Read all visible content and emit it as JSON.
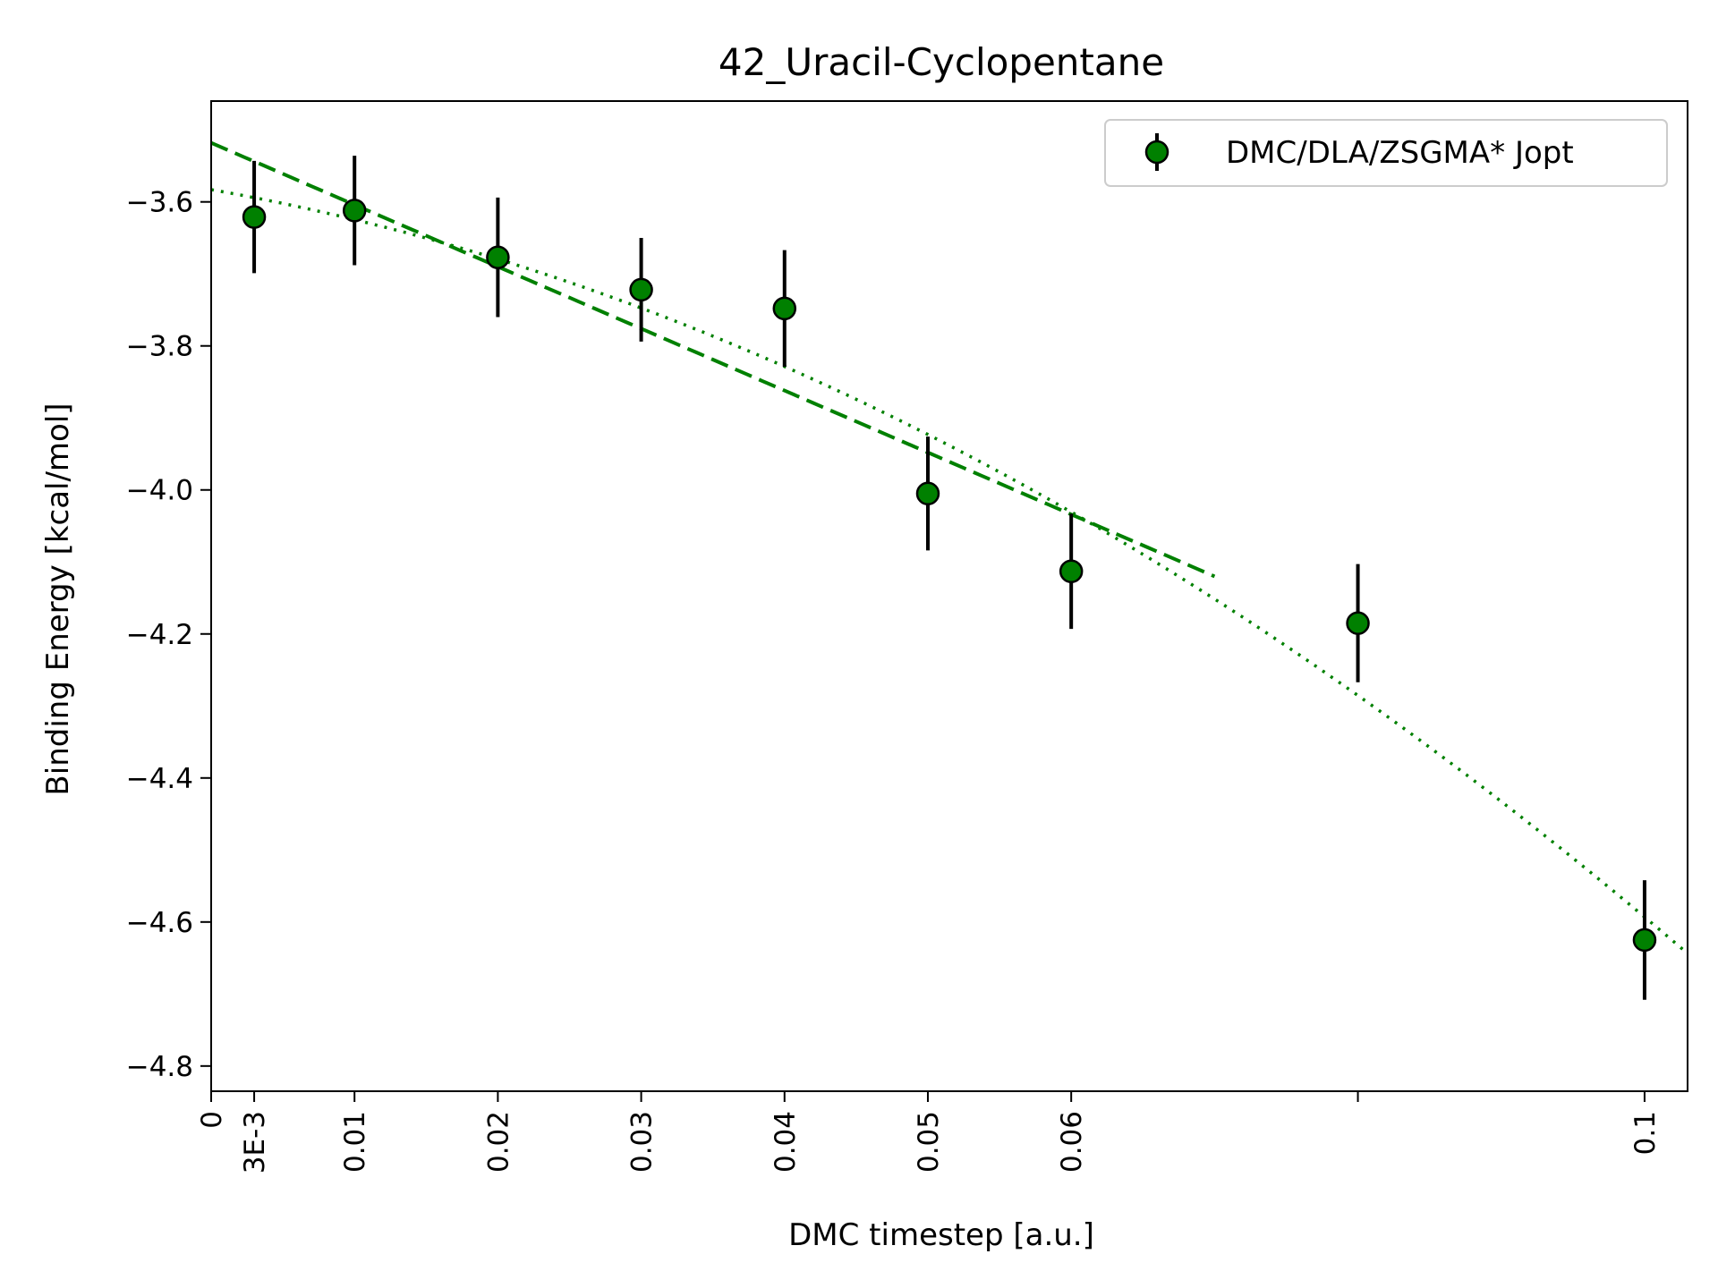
{
  "chart_data": {
    "type": "scatter",
    "title": "42_Uracil-Cyclopentane",
    "xlabel": "DMC timestep [a.u.]",
    "ylabel": "Binding Energy [kcal/mol]",
    "xlim": [
      0,
      0.103
    ],
    "ylim": [
      -4.835,
      -3.46
    ],
    "x_ticks": [
      {
        "value": 0,
        "label": "0"
      },
      {
        "value": 0.003,
        "label": "3E-3"
      },
      {
        "value": 0.01,
        "label": "0.01"
      },
      {
        "value": 0.02,
        "label": "0.02"
      },
      {
        "value": 0.03,
        "label": "0.03"
      },
      {
        "value": 0.04,
        "label": "0.04"
      },
      {
        "value": 0.05,
        "label": "0.05"
      },
      {
        "value": 0.06,
        "label": "0.06"
      },
      {
        "value": 0.08,
        "label": ""
      },
      {
        "value": 0.1,
        "label": "0.1"
      }
    ],
    "y_ticks": [
      {
        "value": -3.6,
        "label": "−3.6"
      },
      {
        "value": -3.8,
        "label": "−3.8"
      },
      {
        "value": -4.0,
        "label": "−4.0"
      },
      {
        "value": -4.2,
        "label": "−4.2"
      },
      {
        "value": -4.4,
        "label": "−4.4"
      },
      {
        "value": -4.6,
        "label": "−4.6"
      },
      {
        "value": -4.8,
        "label": "−4.8"
      }
    ],
    "grid": false,
    "legend": {
      "placement": "top-right",
      "entries": [
        "DMC/DLA/ZSGMA* Jopt"
      ]
    },
    "series": [
      {
        "name": "DMC/DLA/ZSGMA* Jopt",
        "marker_color": "#008000",
        "errorbar_color": "#000000",
        "x": [
          0.003,
          0.01,
          0.02,
          0.03,
          0.04,
          0.05,
          0.06,
          0.08,
          0.1
        ],
        "y": [
          -3.621,
          -3.612,
          -3.677,
          -3.722,
          -3.748,
          -4.005,
          -4.113,
          -4.185,
          -4.625
        ],
        "yerr": [
          0.078,
          0.076,
          0.083,
          0.072,
          0.081,
          0.079,
          0.08,
          0.082,
          0.083
        ]
      }
    ],
    "fit_lines": [
      {
        "style": "dashed",
        "color": "#008000",
        "x_range": [
          0,
          0.07
        ],
        "intercept": -3.518,
        "slope": -8.6
      },
      {
        "style": "dotted",
        "color": "#008000",
        "x_range": [
          0,
          0.103
        ],
        "intercept": -3.583,
        "slope": -3.5,
        "quadratic": -66
      }
    ]
  }
}
